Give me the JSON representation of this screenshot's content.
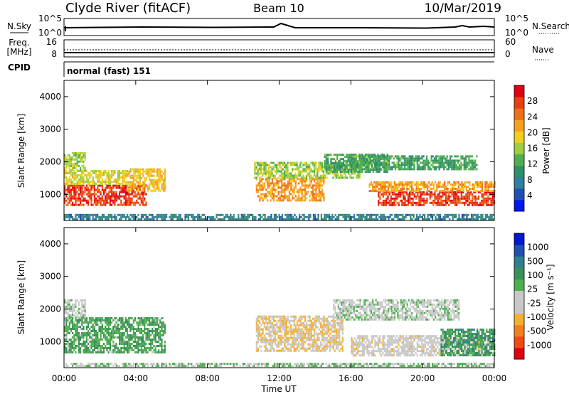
{
  "header": {
    "station": "Clyde River (fitACF)",
    "beam": "Beam 10",
    "date": "10/Mar/2019"
  },
  "top_panels": {
    "nsky": {
      "left_label": "N.Sky",
      "left_ticks": [
        "10^5",
        "10^0"
      ],
      "right_label": "N.Search",
      "right_ticks": [
        "10^5",
        "10^0"
      ]
    },
    "freq": {
      "left_label_1": "Freq.",
      "left_label_2": "[MHz]",
      "left_ticks": [
        "16",
        "8"
      ],
      "right_label": "Nave",
      "right_ticks": [
        "60",
        "0"
      ]
    },
    "cpid": {
      "label": "CPID",
      "text": "normal (fast) 151"
    }
  },
  "x_axis": {
    "ticks": [
      "00:00",
      "04:00",
      "08:00",
      "12:00",
      "16:00",
      "20:00",
      "00:00"
    ],
    "label": "Time UT"
  },
  "colors": {
    "power": [
      "#0018f0",
      "#1f4fb0",
      "#2f7fa0",
      "#2f8f68",
      "#4fae4f",
      "#9fcf3f",
      "#efcf20",
      "#f7a020",
      "#f07018",
      "#e84010",
      "#e00010"
    ],
    "velocity": [
      "#e00010",
      "#f04a10",
      "#f4801a",
      "#f4b030",
      "#c8c8c8",
      "#c8c8c8",
      "#4fae4f",
      "#3a8f5a",
      "#2f7f8f",
      "#2050b0",
      "#0018d0"
    ]
  },
  "chart_data": [
    {
      "type": "heatmap",
      "panel": "power",
      "ylabel": "Slant Range [km]",
      "y_ticks": [
        "1000",
        "2000",
        "3000",
        "4000"
      ],
      "ylim": [
        200,
        4500
      ],
      "xlim_hours": [
        0,
        24
      ],
      "colorbar": {
        "label": "Power [dB]",
        "ticks": [
          "4",
          "8",
          "12",
          "16",
          "20",
          "24",
          "28"
        ],
        "range": [
          0,
          32
        ]
      },
      "regions": [
        {
          "t": [
            0.0,
            4.6
          ],
          "r": [
            650,
            1300
          ],
          "value": 28
        },
        {
          "t": [
            0.0,
            3.5
          ],
          "r": [
            1300,
            1750
          ],
          "value": 18
        },
        {
          "t": [
            0.0,
            1.2
          ],
          "r": [
            1750,
            2300
          ],
          "value": 16
        },
        {
          "t": [
            3.5,
            5.6
          ],
          "r": [
            1100,
            1800
          ],
          "value": 20
        },
        {
          "t": [
            10.7,
            14.5
          ],
          "r": [
            800,
            1500
          ],
          "value": 22
        },
        {
          "t": [
            10.6,
            16.5
          ],
          "r": [
            1500,
            2000
          ],
          "value": 16
        },
        {
          "t": [
            14.5,
            18.0
          ],
          "r": [
            1700,
            2250
          ],
          "value": 12
        },
        {
          "t": [
            17.5,
            24.0
          ],
          "r": [
            650,
            1100
          ],
          "value": 28
        },
        {
          "t": [
            17.0,
            24.0
          ],
          "r": [
            1100,
            1400
          ],
          "value": 22
        },
        {
          "t": [
            16.0,
            23.0
          ],
          "r": [
            1750,
            2200
          ],
          "value": 12
        },
        {
          "t": [
            0.0,
            24.0
          ],
          "r": [
            220,
            400
          ],
          "value": 8
        }
      ]
    },
    {
      "type": "heatmap",
      "panel": "velocity",
      "ylabel": "Slant Range [km]",
      "y_ticks": [
        "1000",
        "2000",
        "3000",
        "4000"
      ],
      "ylim": [
        200,
        4500
      ],
      "xlim_hours": [
        0,
        24
      ],
      "colorbar": {
        "label": "Velocity [m s⁻¹]",
        "ticks": [
          "1000",
          "500",
          "100",
          "25",
          "-25",
          "-100",
          "-500",
          "-1000"
        ],
        "range": [
          -1200,
          1200
        ]
      },
      "regions": [
        {
          "t": [
            0.0,
            5.6
          ],
          "r": [
            700,
            1750
          ],
          "value": 300
        },
        {
          "t": [
            0.0,
            1.2
          ],
          "r": [
            1750,
            2300
          ],
          "value": 0
        },
        {
          "t": [
            10.7,
            15.5
          ],
          "r": [
            700,
            1800
          ],
          "value": -300
        },
        {
          "t": [
            15.0,
            22.0
          ],
          "r": [
            1700,
            2300
          ],
          "value": 0
        },
        {
          "t": [
            16.0,
            24.0
          ],
          "r": [
            600,
            1200
          ],
          "value": -150
        },
        {
          "t": [
            21.0,
            24.0
          ],
          "r": [
            600,
            1400
          ],
          "value": 400
        },
        {
          "t": [
            0.0,
            24.0
          ],
          "r": [
            220,
            350
          ],
          "value": 100
        }
      ]
    }
  ]
}
